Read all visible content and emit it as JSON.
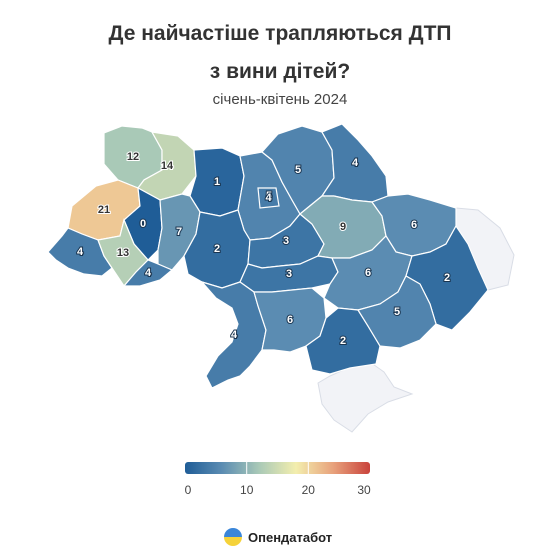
{
  "header": {
    "title_line1": "Де найчастіше трапляються ДТП",
    "title_line2": "з вини дітей?",
    "subtitle": "січень-квітень 2024"
  },
  "colors": {
    "scale": [
      "#1f5d97",
      "#5b8cb2",
      "#a9c9b7",
      "#f3eeae",
      "#e8a27c",
      "#c9433c"
    ],
    "no_data": "#f2f3f7",
    "border": "#ffffff"
  },
  "legend": {
    "ticks": [
      "0",
      "10",
      "20",
      "30"
    ]
  },
  "map": {
    "regions": [
      {
        "id": "volyn",
        "value": "12"
      },
      {
        "id": "rivne",
        "value": "14"
      },
      {
        "id": "zhytomyr",
        "value": "1"
      },
      {
        "id": "kyiv-city",
        "value": "4"
      },
      {
        "id": "kyiv-oblast",
        "value": "5"
      },
      {
        "id": "chernihiv",
        "value": "5"
      },
      {
        "id": "sumy",
        "value": "4"
      },
      {
        "id": "lviv",
        "value": "21"
      },
      {
        "id": "ternopil",
        "value": "0"
      },
      {
        "id": "khmelnytskyi",
        "value": "7"
      },
      {
        "id": "vinnytsia",
        "value": "2"
      },
      {
        "id": "cherkasy",
        "value": "3"
      },
      {
        "id": "poltava",
        "value": "9"
      },
      {
        "id": "kharkiv",
        "value": "6"
      },
      {
        "id": "zakarpattia",
        "value": "4"
      },
      {
        "id": "ivano-frankivsk",
        "value": "13"
      },
      {
        "id": "chernivtsi",
        "value": "4"
      },
      {
        "id": "kirovohrad",
        "value": "3"
      },
      {
        "id": "dnipropetrovsk",
        "value": "6"
      },
      {
        "id": "donetsk",
        "value": "2"
      },
      {
        "id": "odesa",
        "value": "4"
      },
      {
        "id": "mykolaiv",
        "value": "6"
      },
      {
        "id": "kherson",
        "value": "2"
      },
      {
        "id": "zaporizhzhia",
        "value": "5"
      }
    ]
  },
  "footer": {
    "brand": "Опендатабот"
  }
}
